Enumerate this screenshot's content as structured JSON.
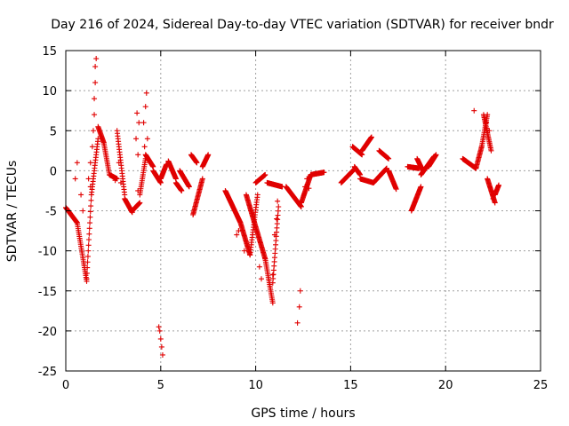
{
  "chart_data": {
    "type": "scatter",
    "title": "Day 216 of 2024, Sidereal Day-to-day VTEC variation (SDTVAR) for receiver bndr",
    "xlabel": "GPS time / hours",
    "ylabel": "SDTVAR / TECUs",
    "xlim": [
      0,
      25
    ],
    "ylim": [
      -25,
      15
    ],
    "x_ticks": [
      0,
      5,
      10,
      15,
      20,
      25
    ],
    "y_ticks": [
      -25,
      -20,
      -15,
      -10,
      -5,
      0,
      5,
      10,
      15
    ],
    "x_tick_labels": [
      "0",
      "5",
      "10",
      "15",
      "20",
      "25"
    ],
    "y_tick_labels": [
      "-25",
      "-20",
      "-15",
      "-10",
      "-5",
      "0",
      "5",
      "10",
      "15"
    ],
    "grid": true,
    "marker": "+",
    "marker_color": "#e00000",
    "segments": [
      {
        "t0": 0.0,
        "t1": 0.6,
        "y0": -4.6,
        "y1": -6.5
      },
      {
        "t0": 0.6,
        "t1": 1.1,
        "y0": -6.5,
        "y1": -13.8
      },
      {
        "t0": 1.1,
        "t1": 1.35,
        "y0": -13.5,
        "y1": -3.0
      },
      {
        "t0": 1.35,
        "t1": 1.7,
        "y0": -3.0,
        "y1": 4.0
      },
      {
        "t0": 1.7,
        "t1": 2.0,
        "y0": 5.5,
        "y1": 3.5
      },
      {
        "t0": 2.0,
        "t1": 2.3,
        "y0": 3.5,
        "y1": -0.5
      },
      {
        "t0": 2.3,
        "t1": 2.7,
        "y0": -0.5,
        "y1": -1.0
      },
      {
        "t0": 2.7,
        "t1": 3.1,
        "y0": 5.0,
        "y1": -3.0
      },
      {
        "t0": 3.1,
        "t1": 3.5,
        "y0": -3.5,
        "y1": -5.2
      },
      {
        "t0": 3.5,
        "t1": 3.9,
        "y0": -5.0,
        "y1": -4.0
      },
      {
        "t0": 3.9,
        "t1": 4.2,
        "y0": -3.0,
        "y1": 1.5
      },
      {
        "t0": 4.2,
        "t1": 4.6,
        "y0": 2.0,
        "y1": 0.5
      },
      {
        "t0": 4.6,
        "t1": 5.0,
        "y0": 0.0,
        "y1": -1.5
      },
      {
        "t0": 5.0,
        "t1": 5.3,
        "y0": -1.0,
        "y1": 0.8
      },
      {
        "t0": 5.4,
        "t1": 5.8,
        "y0": 1.2,
        "y1": -1.0
      },
      {
        "t0": 5.8,
        "t1": 6.1,
        "y0": -1.5,
        "y1": -2.5
      },
      {
        "t0": 6.0,
        "t1": 6.5,
        "y0": 0.0,
        "y1": -2.0
      },
      {
        "t0": 6.6,
        "t1": 6.9,
        "y0": 2.0,
        "y1": 1.0
      },
      {
        "t0": 6.7,
        "t1": 7.2,
        "y0": -5.5,
        "y1": -1.0
      },
      {
        "t0": 7.2,
        "t1": 7.5,
        "y0": 0.5,
        "y1": 2.0
      },
      {
        "t0": 8.4,
        "t1": 9.2,
        "y0": -2.5,
        "y1": -6.5
      },
      {
        "t0": 9.2,
        "t1": 9.7,
        "y0": -6.5,
        "y1": -10.5
      },
      {
        "t0": 9.7,
        "t1": 10.1,
        "y0": -10.5,
        "y1": -3.0
      },
      {
        "t0": 10.0,
        "t1": 10.5,
        "y0": -1.5,
        "y1": -0.5
      },
      {
        "t0": 9.5,
        "t1": 10.5,
        "y0": -3.0,
        "y1": -11.0
      },
      {
        "t0": 10.5,
        "t1": 10.9,
        "y0": -11.0,
        "y1": -16.5
      },
      {
        "t0": 10.9,
        "t1": 11.2,
        "y0": -14.0,
        "y1": -4.5
      },
      {
        "t0": 10.6,
        "t1": 11.4,
        "y0": -1.5,
        "y1": -2.0
      },
      {
        "t0": 11.6,
        "t1": 12.4,
        "y0": -2.0,
        "y1": -4.5
      },
      {
        "t0": 12.4,
        "t1": 12.9,
        "y0": -4.0,
        "y1": -0.5
      },
      {
        "t0": 12.9,
        "t1": 13.6,
        "y0": -0.5,
        "y1": -0.2
      },
      {
        "t0": 14.5,
        "t1": 15.2,
        "y0": -1.5,
        "y1": 0.2
      },
      {
        "t0": 15.2,
        "t1": 15.5,
        "y0": 0.5,
        "y1": -0.5
      },
      {
        "t0": 15.1,
        "t1": 15.6,
        "y0": 3.0,
        "y1": 2.0
      },
      {
        "t0": 15.6,
        "t1": 16.1,
        "y0": 2.5,
        "y1": 4.2
      },
      {
        "t0": 15.5,
        "t1": 16.2,
        "y0": -1.0,
        "y1": -1.5
      },
      {
        "t0": 16.2,
        "t1": 16.9,
        "y0": -1.5,
        "y1": 0.3
      },
      {
        "t0": 16.5,
        "t1": 17.0,
        "y0": 2.5,
        "y1": 1.5
      },
      {
        "t0": 17.0,
        "t1": 17.4,
        "y0": 0.0,
        "y1": -2.3
      },
      {
        "t0": 18.0,
        "t1": 18.6,
        "y0": 0.5,
        "y1": 0.3
      },
      {
        "t0": 18.2,
        "t1": 18.7,
        "y0": -5.0,
        "y1": -2.0
      },
      {
        "t0": 18.5,
        "t1": 18.8,
        "y0": 1.5,
        "y1": 0.0
      },
      {
        "t0": 18.7,
        "t1": 19.4,
        "y0": -0.5,
        "y1": 1.8
      },
      {
        "t0": 19.1,
        "t1": 19.5,
        "y0": 0.5,
        "y1": 2.0
      },
      {
        "t0": 20.9,
        "t1": 21.6,
        "y0": 1.5,
        "y1": 0.3
      },
      {
        "t0": 21.6,
        "t1": 21.9,
        "y0": 0.3,
        "y1": 3.0
      },
      {
        "t0": 21.9,
        "t1": 22.2,
        "y0": 3.0,
        "y1": 7.0
      },
      {
        "t0": 22.0,
        "t1": 22.4,
        "y0": 7.0,
        "y1": 2.5
      },
      {
        "t0": 22.2,
        "t1": 22.6,
        "y0": -1.0,
        "y1": -4.0
      },
      {
        "t0": 22.6,
        "t1": 22.8,
        "y0": -3.0,
        "y1": -1.8
      }
    ],
    "points": [
      [
        0.5,
        -1.0
      ],
      [
        0.6,
        1.0
      ],
      [
        0.8,
        -3.0
      ],
      [
        0.9,
        -5.0
      ],
      [
        1.3,
        1.0
      ],
      [
        1.4,
        3.0
      ],
      [
        1.45,
        5.0
      ],
      [
        1.5,
        7.0
      ],
      [
        1.5,
        9.0
      ],
      [
        1.55,
        11.0
      ],
      [
        1.55,
        13.0
      ],
      [
        1.6,
        14.0
      ],
      [
        1.3,
        -2.0
      ],
      [
        1.2,
        -1.0
      ],
      [
        2.6,
        -1.2
      ],
      [
        2.8,
        1.0
      ],
      [
        2.9,
        -1.5
      ],
      [
        3.7,
        4.0
      ],
      [
        3.8,
        2.0
      ],
      [
        3.8,
        -2.5
      ],
      [
        3.75,
        7.2
      ],
      [
        3.85,
        6.0
      ],
      [
        4.1,
        6.0
      ],
      [
        4.2,
        8.0
      ],
      [
        4.25,
        9.7
      ],
      [
        4.3,
        4.0
      ],
      [
        4.15,
        3.0
      ],
      [
        4.9,
        -19.5
      ],
      [
        4.95,
        -20.0
      ],
      [
        5.0,
        -21.0
      ],
      [
        5.05,
        -22.0
      ],
      [
        5.1,
        -23.0
      ],
      [
        9.0,
        -8.0
      ],
      [
        9.1,
        -7.5
      ],
      [
        9.4,
        -10.0
      ],
      [
        10.2,
        -12.0
      ],
      [
        10.3,
        -13.5
      ],
      [
        10.9,
        -13.0
      ],
      [
        11.0,
        -8.0
      ],
      [
        11.1,
        -6.0
      ],
      [
        11.15,
        -3.8
      ],
      [
        12.2,
        -19.0
      ],
      [
        12.3,
        -17.0
      ],
      [
        12.35,
        -15.0
      ],
      [
        12.6,
        -2.0
      ],
      [
        12.7,
        -1.0
      ],
      [
        12.8,
        -2.2
      ],
      [
        21.5,
        7.5
      ],
      [
        22.15,
        6.0
      ],
      [
        22.3,
        5.0
      ],
      [
        22.4,
        -2.5
      ],
      [
        22.5,
        -3.5
      ]
    ]
  }
}
